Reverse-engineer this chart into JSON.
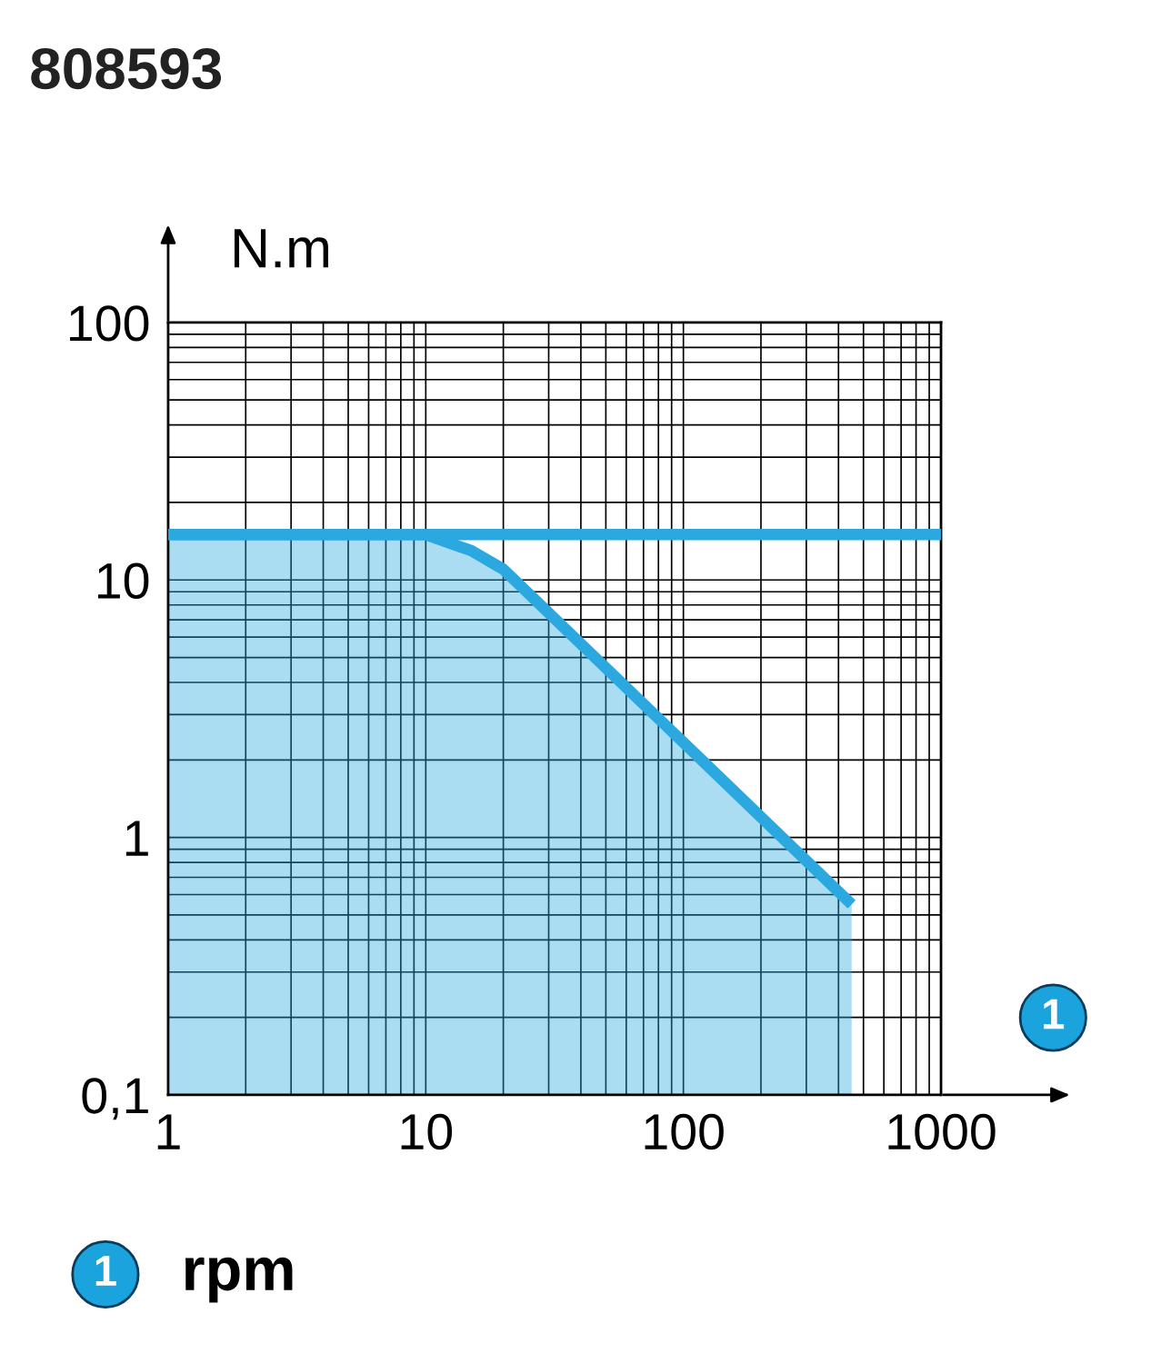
{
  "chart_data": {
    "type": "line",
    "title": "808593",
    "xlabel": "1",
    "ylabel": "N.m",
    "log": "xy",
    "grid": true,
    "xlim": [
      1,
      1000
    ],
    "ylim": [
      0.1,
      100
    ],
    "xticks": [
      1,
      10,
      100,
      1000
    ],
    "yticks": [
      {
        "value": 0.1,
        "label": "0,1"
      },
      1,
      10,
      100
    ],
    "series": [
      {
        "type": "area",
        "color": "#2aa8df",
        "x": [
          1,
          10,
          15,
          20,
          450
        ],
        "values": [
          15,
          15,
          13,
          11,
          0.55
        ]
      },
      {
        "color": "#2aa8df",
        "x": [
          1,
          1000
        ],
        "values": [
          15,
          15
        ]
      }
    ],
    "annotations": [
      "1",
      "rpm"
    ]
  }
}
